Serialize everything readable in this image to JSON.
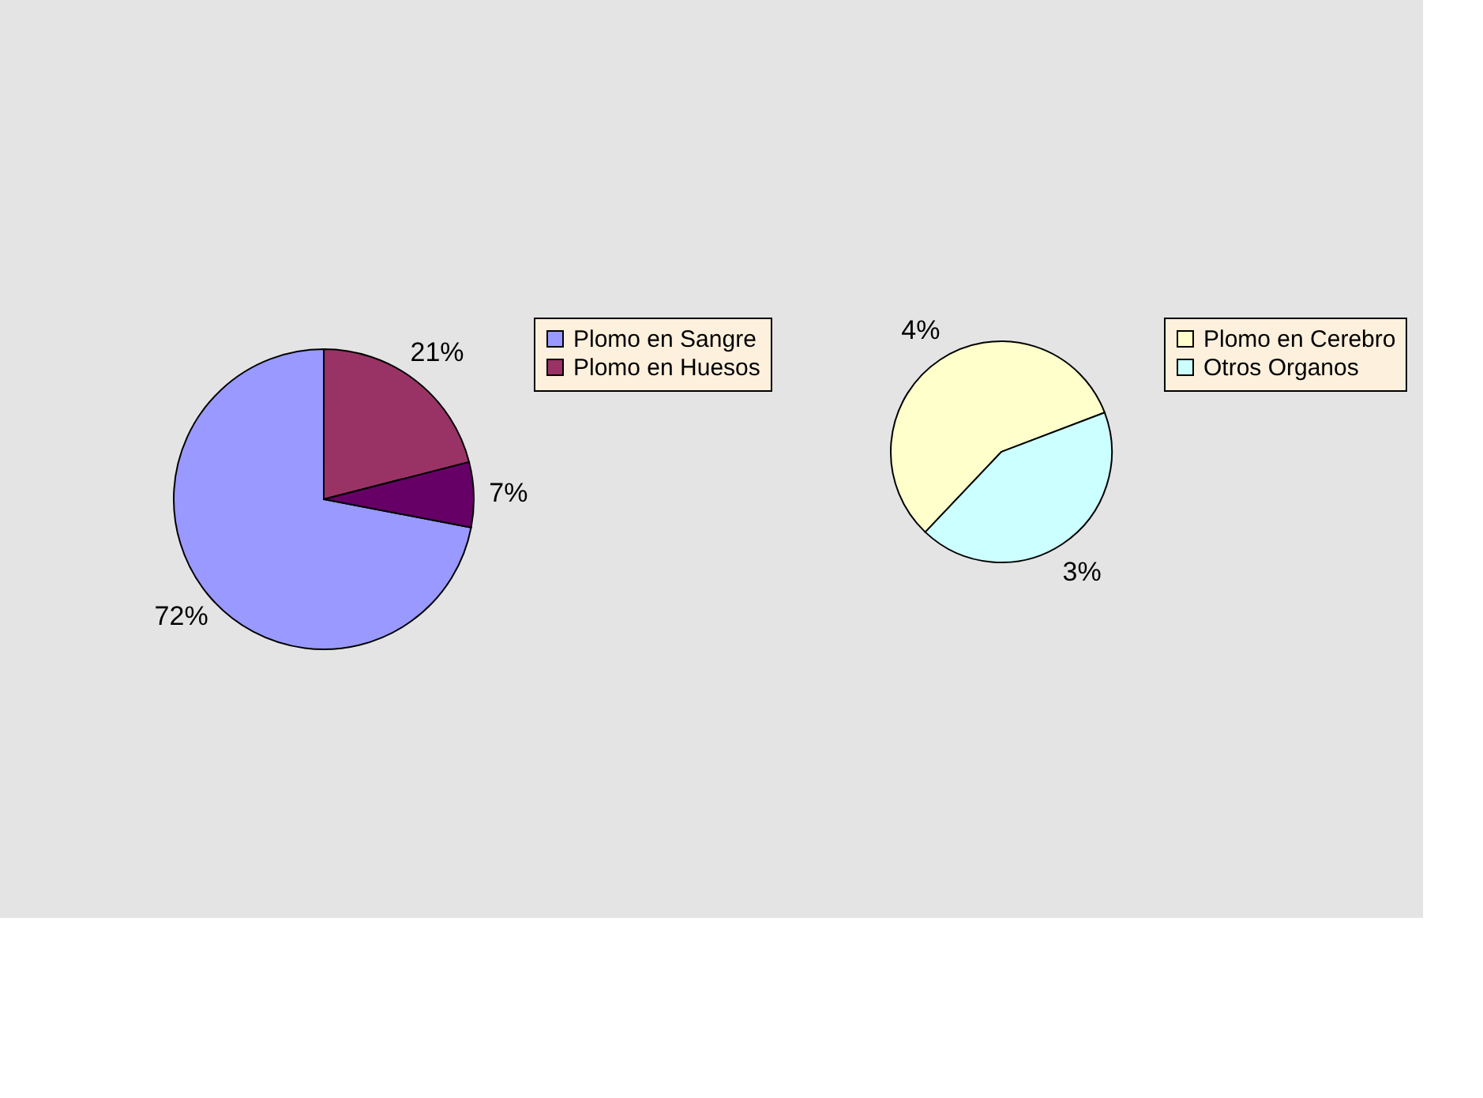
{
  "chart_data": [
    {
      "type": "pie",
      "categories": [
        "Plomo en Sangre",
        "Plomo en Huesos",
        null
      ],
      "values": [
        72,
        21,
        7
      ],
      "colors": [
        "#9999ff",
        "#993366",
        "#660066"
      ],
      "value_labels": [
        "72%",
        "21%",
        "7%"
      ],
      "legend": "right"
    },
    {
      "type": "pie",
      "categories": [
        "Plomo en Cerebro",
        "Otros Organos"
      ],
      "values": [
        4,
        3
      ],
      "colors": [
        "#ffffcc",
        "#ccffff"
      ],
      "value_labels": [
        "4%",
        "3%"
      ],
      "legend": "right"
    }
  ]
}
